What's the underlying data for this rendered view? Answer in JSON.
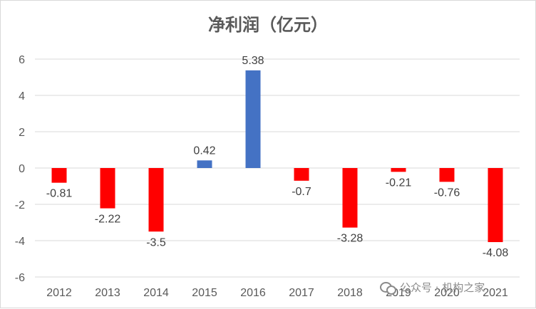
{
  "chart_data": {
    "type": "bar",
    "title": "净利润（亿元）",
    "categories": [
      "2012",
      "2013",
      "2014",
      "2015",
      "2016",
      "2017",
      "2018",
      "2019",
      "2020",
      "2021"
    ],
    "values": [
      -0.81,
      -2.22,
      -3.5,
      0.42,
      5.38,
      -0.7,
      -3.28,
      -0.21,
      -0.76,
      -4.08
    ],
    "data_labels": [
      "-0.81",
      "-2.22",
      "-3.5",
      "0.42",
      "5.38",
      "-0.7",
      "-3.28",
      "-0.21",
      "-0.76",
      "-4.08"
    ],
    "ylim": [
      -6,
      6
    ],
    "yticks": [
      6,
      4,
      2,
      0,
      -2,
      -4,
      -6
    ],
    "grid": true,
    "colors": {
      "positive": "#4472c4",
      "negative": "#ff0000",
      "grid": "#d9d9d9"
    }
  },
  "watermark": {
    "icon": "wechat-icon",
    "text": "公众号 · 机构之家"
  }
}
